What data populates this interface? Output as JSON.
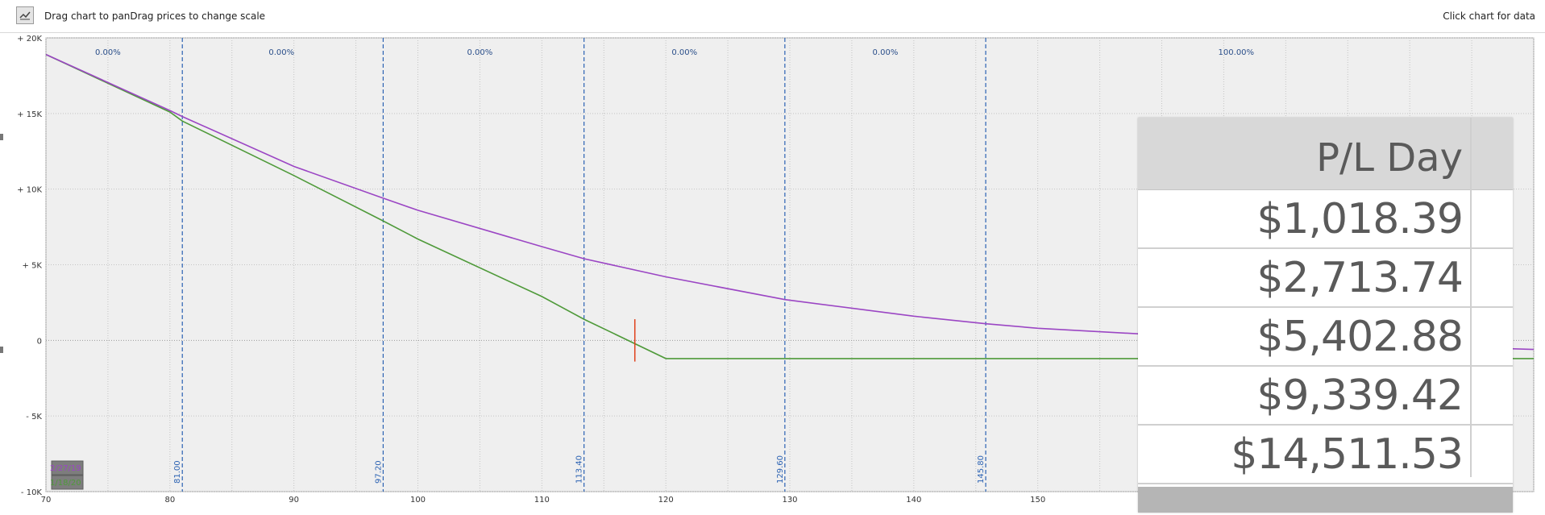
{
  "toolbar": {
    "chart_icon": "line-chart-icon",
    "left_hint": "Drag chart to panDrag prices to change scale",
    "right_hint": "Click chart for data"
  },
  "chart_data": {
    "type": "line",
    "x_ticks": [
      70,
      80,
      90,
      100,
      110,
      120,
      130,
      140,
      150
    ],
    "xlim": [
      70,
      190
    ],
    "y_ticks": [
      {
        "value": 20000,
        "label": "+ 20K"
      },
      {
        "value": 15000,
        "label": "+ 15K"
      },
      {
        "value": 10000,
        "label": "+ 10K"
      },
      {
        "value": 5000,
        "label": "+ 5K"
      },
      {
        "value": 0,
        "label": "0"
      },
      {
        "value": -5000,
        "label": "- 5K"
      },
      {
        "value": -10000,
        "label": "- 10K"
      }
    ],
    "ylim": [
      -10000,
      20000
    ],
    "grid": true,
    "series": [
      {
        "name": "2/27/19",
        "color": "#9b46c4",
        "x": [
          70,
          80,
          81,
          90,
          97.2,
          100,
          110,
          113.4,
          120,
          129.6,
          140,
          145.8,
          150,
          160,
          170,
          180,
          186,
          190
        ],
        "y": [
          18900,
          15200,
          14800,
          11500,
          9400,
          8600,
          6200,
          5400,
          4200,
          2700,
          1600,
          1100,
          800,
          350,
          0,
          -300,
          -500,
          -600
        ]
      },
      {
        "name": "1/18/20",
        "color": "#4f9a3a",
        "x": [
          70,
          80,
          81,
          90,
          97.2,
          100,
          110,
          113.4,
          120,
          129.6,
          140,
          145.8,
          150,
          160,
          170,
          180,
          190
        ],
        "y": [
          18900,
          15100,
          14500,
          10900,
          7900,
          6700,
          2900,
          1400,
          -1200,
          -1200,
          -1200,
          -1200,
          -1200,
          -1200,
          -1200,
          -1200,
          -1200
        ]
      }
    ],
    "strike_lines": [
      {
        "x": 81,
        "label": "81.00"
      },
      {
        "x": 97.2,
        "label": "97.20"
      },
      {
        "x": 113.4,
        "label": "113.40"
      },
      {
        "x": 129.6,
        "label": "129.60"
      },
      {
        "x": 145.8,
        "label": "145.80"
      }
    ],
    "probabilities": [
      {
        "x": 75,
        "label": "0.00%"
      },
      {
        "x": 89,
        "label": "0.00%"
      },
      {
        "x": 105,
        "label": "0.00%"
      },
      {
        "x": 121.5,
        "label": "0.00%"
      },
      {
        "x": 137.7,
        "label": "0.00%"
      },
      {
        "x": 166,
        "label": "100.00%"
      }
    ],
    "current_price": 117.5
  },
  "pl_table": {
    "header": "P/L Day",
    "rows": [
      "$1,018.39",
      "$2,713.74",
      "$5,402.88",
      "$9,339.42",
      "$14,511.53"
    ]
  }
}
